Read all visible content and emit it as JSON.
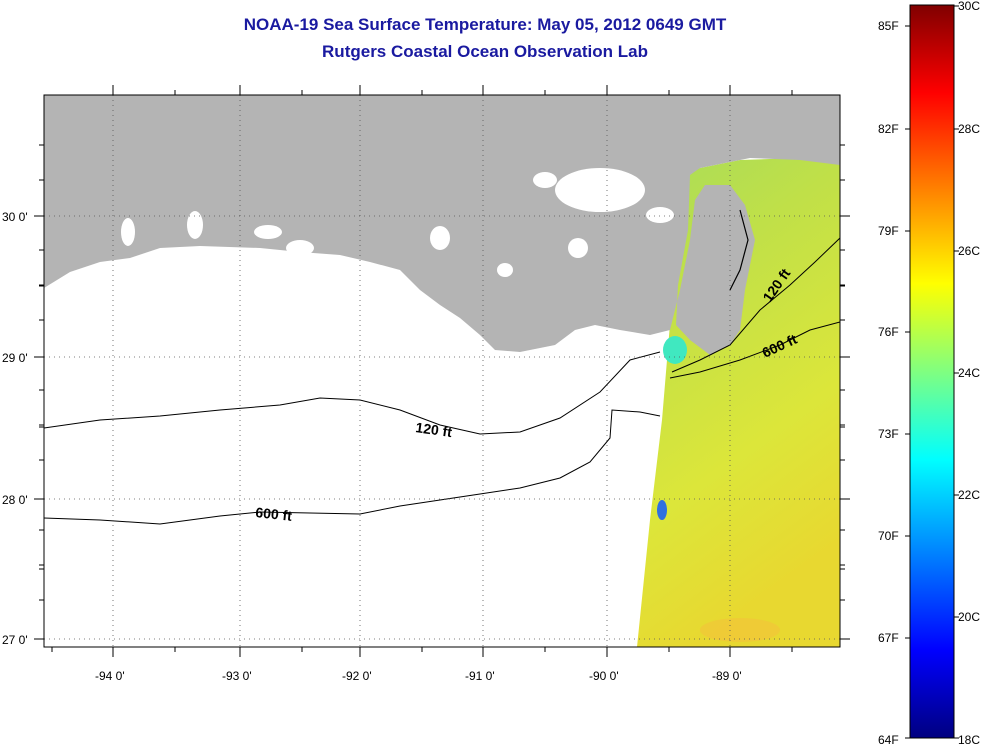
{
  "header": {
    "title": "NOAA-19 Sea Surface Temperature:  May 05, 2012 0649 GMT",
    "subtitle": "Rutgers Coastal Ocean Observation Lab"
  },
  "map": {
    "lon_labels": [
      "-94 0'",
      "-93 0'",
      "-92 0'",
      "-91 0'",
      "-90 0'",
      "-89 0'"
    ],
    "lat_labels": [
      "30 0'",
      "29 0'",
      "28 0'",
      "27 0'"
    ],
    "contours": [
      {
        "name": "120 ft",
        "label": "120 ft"
      },
      {
        "name": "600 ft",
        "label": "600 ft"
      },
      {
        "name": "120 ft east",
        "label": "120 ft"
      },
      {
        "name": "600 ft east",
        "label": "600 ft"
      }
    ],
    "colors": {
      "land": "#b4b4b4",
      "ocean": "#ffffff",
      "sst_base": "#c8e03a"
    }
  },
  "colorbar": {
    "fahrenheit": [
      "85F",
      "82F",
      "79F",
      "76F",
      "73F",
      "70F",
      "67F",
      "64F"
    ],
    "celsius": [
      "30C",
      "28C",
      "26C",
      "24C",
      "22C",
      "20C",
      "18C"
    ],
    "range_c": [
      18,
      30
    ]
  }
}
